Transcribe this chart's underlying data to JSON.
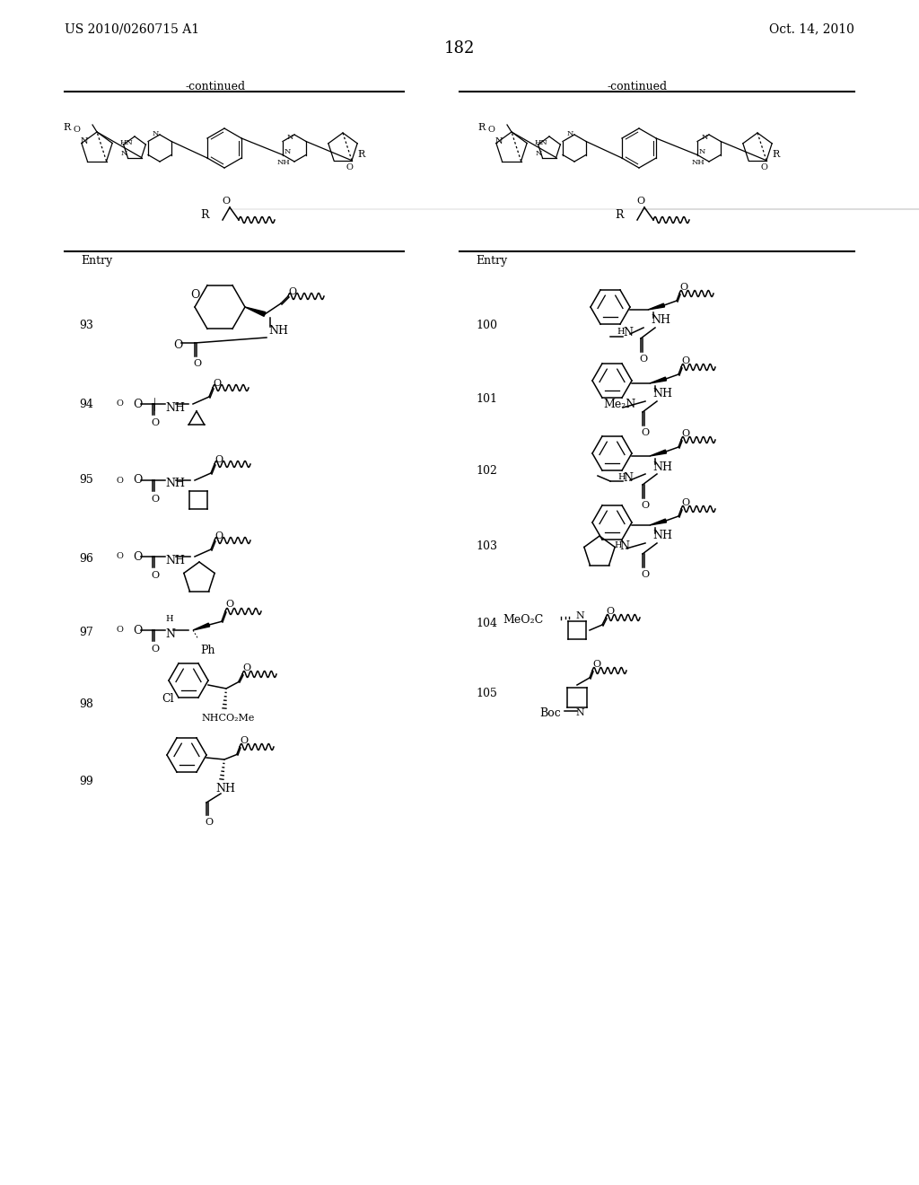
{
  "patent_number": "US 2010/0260715 A1",
  "patent_date": "Oct. 14, 2010",
  "page_number": "182",
  "bg_color": "#ffffff",
  "text_color": "#000000",
  "left_entries": [
    "93",
    "94",
    "95",
    "96",
    "97",
    "98",
    "99"
  ],
  "right_entries": [
    "100",
    "101",
    "102",
    "103",
    "104",
    "105"
  ]
}
